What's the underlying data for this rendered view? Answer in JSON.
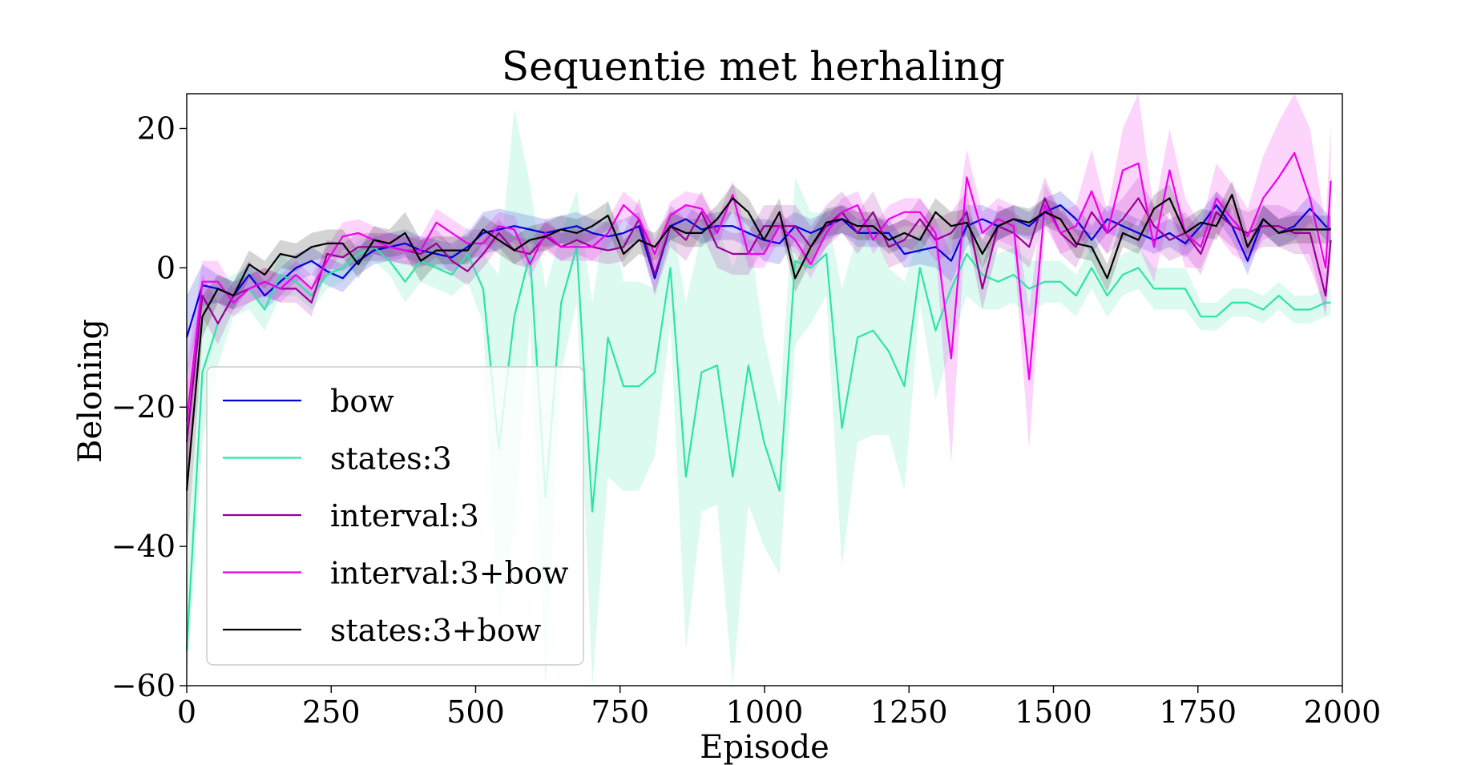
{
  "chart_data": {
    "type": "line",
    "title": "Sequentie met herhaling",
    "xlabel": "Episode",
    "ylabel": "Beloning",
    "xlim": [
      0,
      2000
    ],
    "ylim": [
      -60,
      25
    ],
    "xticks": [
      0,
      250,
      500,
      750,
      1000,
      1250,
      1500,
      1750,
      2000
    ],
    "xtick_labels": [
      "0",
      "250",
      "500",
      "750",
      "1000",
      "1250",
      "1500",
      "1750",
      "2000"
    ],
    "yticks": [
      -60,
      -40,
      -20,
      0,
      20
    ],
    "ytick_labels": [
      "−60",
      "−40",
      "−20",
      "0",
      "20"
    ],
    "grid": false,
    "legend_position": "lower-left",
    "shaded_band": "spread around each series",
    "x": [
      0,
      27,
      54,
      81,
      108,
      135,
      162,
      189,
      216,
      243,
      270,
      297,
      324,
      351,
      378,
      405,
      432,
      459,
      486,
      513,
      540,
      567,
      594,
      621,
      648,
      675,
      702,
      729,
      756,
      783,
      810,
      837,
      864,
      891,
      918,
      945,
      972,
      999,
      1026,
      1053,
      1080,
      1107,
      1134,
      1161,
      1188,
      1215,
      1242,
      1269,
      1296,
      1323,
      1350,
      1377,
      1404,
      1431,
      1458,
      1485,
      1512,
      1539,
      1566,
      1593,
      1620,
      1647,
      1674,
      1701,
      1728,
      1755,
      1782,
      1809,
      1836,
      1863,
      1890,
      1917,
      1944,
      1971,
      1980
    ],
    "series": [
      {
        "name": "bow",
        "color": "#0000dd",
        "values": [
          -10,
          -2.5,
          -3,
          -4,
          -1,
          -4,
          -2,
          0,
          1,
          -0.5,
          -1.5,
          1,
          2.5,
          3,
          3.5,
          2.5,
          2,
          1.5,
          3,
          5,
          5.5,
          6,
          5.5,
          5,
          5.5,
          6,
          5,
          4.5,
          5,
          6,
          -1.5,
          6,
          7,
          5.5,
          6,
          6,
          5,
          4,
          3.5,
          6,
          5,
          6,
          7,
          5,
          5,
          5,
          2,
          2.5,
          3,
          1,
          6,
          7,
          6,
          7,
          6,
          8,
          9,
          7,
          4,
          7,
          6,
          5,
          4,
          5,
          3.5,
          6,
          9,
          6,
          1,
          7,
          5,
          6,
          8.5,
          6,
          5.5
        ],
        "band_width": [
          6,
          3,
          2,
          2,
          2,
          2,
          2,
          2,
          2,
          2,
          2,
          2,
          2,
          2,
          2,
          2,
          2,
          2,
          2,
          3,
          3,
          2,
          2,
          2,
          2,
          2,
          2,
          2,
          2,
          2,
          2,
          2,
          2,
          2,
          2,
          2,
          2,
          3,
          3,
          2,
          2,
          2,
          2,
          2,
          2,
          2,
          2,
          2,
          3,
          3,
          3,
          2,
          2,
          2,
          2,
          2,
          2,
          2,
          2,
          2,
          2,
          2,
          2,
          2,
          2,
          2,
          2,
          2,
          2,
          2,
          2,
          2,
          2,
          2,
          2
        ]
      },
      {
        "name": "states:3",
        "color": "#2fe3a8",
        "values": [
          -55,
          -15,
          -8,
          -4,
          -3,
          -6,
          -1,
          -2,
          -4,
          -1,
          0,
          2,
          3,
          1,
          -2,
          1,
          0,
          -1,
          2,
          -3,
          -26,
          -7,
          2,
          -33,
          -5,
          3,
          -35,
          -10,
          -17,
          -17,
          -15,
          0,
          -30,
          -15,
          -14,
          -30,
          -14,
          -25,
          -32,
          1,
          0,
          2,
          -23,
          -10,
          -9,
          -12,
          -17,
          0,
          -9,
          -3,
          2,
          -1,
          -2,
          -1,
          -3,
          -2,
          -2,
          -4,
          0,
          -4,
          -1,
          0,
          -3,
          -3,
          -3,
          -7,
          -7,
          -5,
          -5,
          -6,
          -4,
          -6,
          -6,
          -5,
          -5
        ],
        "band_width": [
          10,
          10,
          6,
          3,
          3,
          3,
          3,
          2,
          2,
          2,
          2,
          2,
          2,
          2,
          3,
          3,
          3,
          3,
          4,
          5,
          25,
          30,
          10,
          30,
          10,
          8,
          30,
          20,
          15,
          15,
          12,
          8,
          25,
          20,
          20,
          30,
          20,
          15,
          12,
          12,
          8,
          6,
          20,
          15,
          15,
          12,
          15,
          5,
          10,
          8,
          6,
          5,
          4,
          4,
          4,
          3,
          3,
          3,
          3,
          3,
          3,
          3,
          3,
          3,
          3,
          2,
          2,
          2,
          2,
          2,
          2,
          2,
          2,
          2,
          2
        ]
      },
      {
        "name": "interval:3",
        "color": "#990099",
        "values": [
          -25,
          -4,
          -8,
          -4,
          -3,
          -2,
          -3,
          -3,
          -5,
          2,
          1.5,
          3,
          3,
          3,
          2.5,
          2,
          3.5,
          1,
          -0.5,
          2,
          5,
          2.5,
          2,
          4.5,
          3,
          4,
          3,
          2.5,
          3,
          7,
          -1,
          6,
          4,
          8,
          3,
          2,
          2,
          6,
          6,
          6,
          3,
          6,
          8,
          5,
          8,
          3,
          4,
          7,
          4,
          5,
          8,
          -3,
          6,
          5,
          3,
          10,
          5,
          3,
          8,
          5,
          7,
          10,
          6,
          4,
          5,
          2,
          8,
          6,
          5,
          6,
          6,
          5,
          5,
          -4,
          4
        ],
        "band_width": [
          8,
          3,
          3,
          2,
          2,
          2,
          2,
          2,
          2,
          2,
          2,
          2,
          2,
          2,
          2,
          2,
          2,
          2,
          2,
          2,
          2,
          2,
          2,
          2,
          2,
          2,
          2,
          2,
          2,
          3,
          3,
          3,
          3,
          3,
          3,
          3,
          3,
          3,
          3,
          3,
          3,
          3,
          3,
          3,
          3,
          3,
          3,
          3,
          3,
          3,
          3,
          3,
          3,
          3,
          3,
          3,
          3,
          3,
          3,
          3,
          3,
          3,
          3,
          3,
          3,
          3,
          3,
          3,
          3,
          3,
          3,
          3,
          3,
          3,
          3
        ]
      },
      {
        "name": "interval:3+bow",
        "color": "#ee00ee",
        "values": [
          -22,
          -2,
          -2,
          -5,
          -3,
          -2,
          -3,
          -1,
          -3,
          1,
          4.5,
          5,
          4,
          3,
          2.5,
          2.5,
          6.5,
          5,
          3.5,
          3.5,
          6,
          5.5,
          0.5,
          5,
          3,
          3,
          3,
          5,
          9,
          7,
          2,
          7.5,
          9,
          8.5,
          5,
          10.5,
          2,
          2,
          6,
          4,
          0.5,
          5,
          8,
          9,
          4,
          7,
          8,
          8,
          5,
          -13,
          13,
          5,
          7,
          6,
          -16,
          9,
          5,
          6,
          11,
          5,
          14,
          15,
          3,
          14,
          5,
          3,
          10,
          7,
          4.5,
          10,
          13,
          16.5,
          10,
          0,
          12.5
        ],
        "band_width": [
          8,
          3,
          3,
          2,
          2,
          2,
          2,
          2,
          2,
          2,
          2,
          2,
          2,
          2,
          2,
          2,
          2,
          2,
          2,
          2,
          2,
          2,
          2,
          2,
          2,
          2,
          2,
          2,
          2,
          2,
          2,
          2,
          2,
          2,
          2,
          2,
          2,
          2,
          2,
          2,
          2,
          2,
          2,
          2,
          2,
          2,
          2,
          2,
          2,
          15,
          4,
          3,
          3,
          3,
          10,
          3,
          3,
          3,
          6,
          3,
          6,
          12,
          5,
          6,
          5,
          3,
          5,
          5,
          4,
          6,
          8,
          12,
          10,
          6,
          8
        ]
      },
      {
        "name": "states:3+bow",
        "color": "#000000",
        "values": [
          -32,
          -7,
          -3,
          -4,
          0.5,
          -1,
          2,
          1.5,
          3,
          3.5,
          3.5,
          0.5,
          4,
          3.5,
          5,
          1,
          2.5,
          2.5,
          2.5,
          5.5,
          4,
          2.5,
          4,
          4.5,
          5.5,
          5,
          6,
          7.5,
          2,
          4,
          3,
          6,
          5,
          5,
          7,
          10,
          8,
          4,
          8,
          -1.5,
          3,
          6.5,
          7,
          6,
          6,
          4,
          5,
          4,
          8,
          6,
          6.5,
          2,
          6,
          7,
          6.5,
          8,
          7,
          3.5,
          3,
          -1.5,
          5,
          4,
          8.5,
          10,
          5,
          6.5,
          6,
          10.5,
          3,
          7,
          5,
          5.5,
          5.5,
          5.5,
          5.5
        ],
        "band_width": [
          10,
          3,
          2,
          2,
          2,
          2,
          2,
          2,
          2,
          2,
          2,
          2,
          2,
          2,
          3,
          3,
          2,
          2,
          2,
          2,
          2,
          2,
          2,
          2,
          2,
          2,
          2,
          2,
          2,
          2,
          2,
          2,
          2,
          2,
          2,
          2,
          2,
          2,
          2,
          2,
          2,
          2,
          2,
          2,
          2,
          2,
          2,
          2,
          2,
          2,
          2,
          2,
          2,
          2,
          2,
          2,
          2,
          2,
          2,
          2,
          2,
          2,
          2,
          2,
          2,
          2,
          2,
          2,
          2,
          2,
          2,
          2,
          2,
          2,
          2
        ]
      }
    ]
  }
}
